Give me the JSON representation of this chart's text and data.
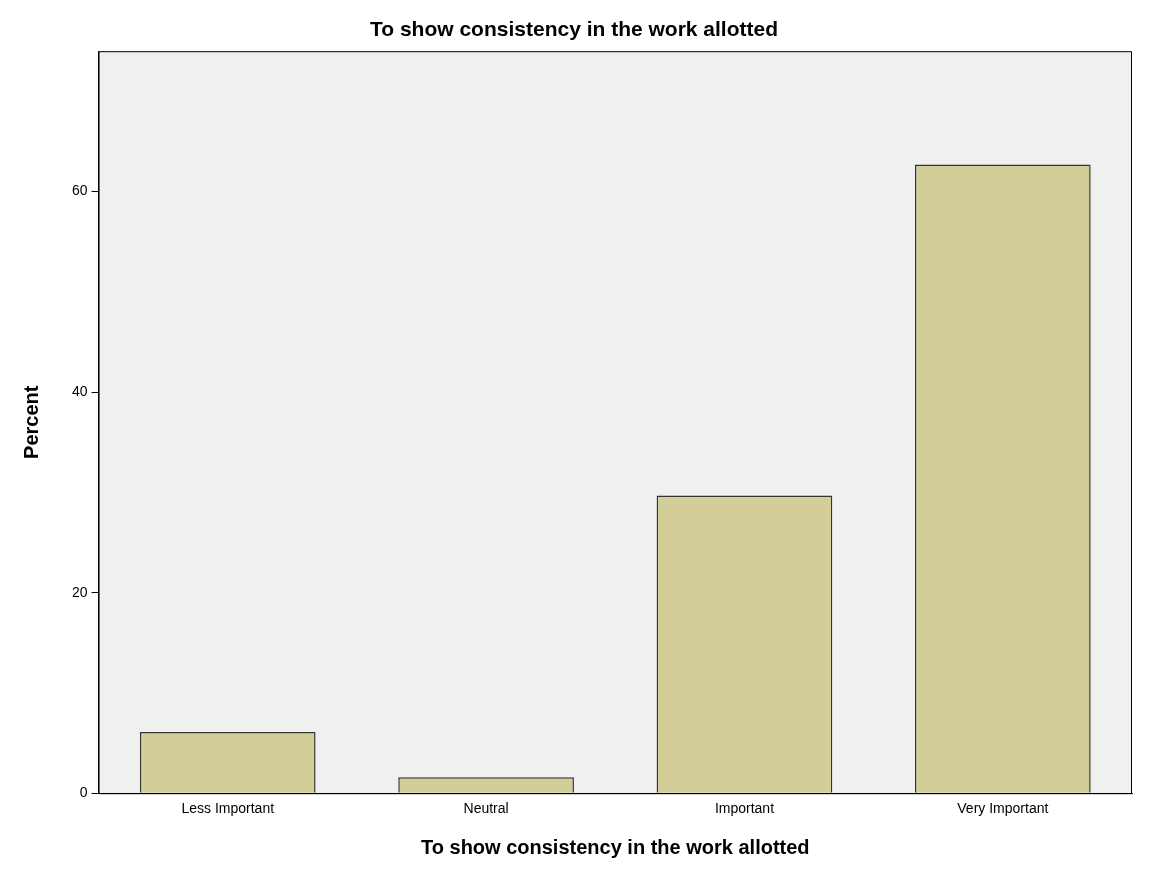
{
  "chart_data": {
    "type": "bar",
    "title": "To show consistency in the work allotted",
    "xlabel": "To show consistency in the work allotted",
    "ylabel": "Percent",
    "categories": [
      "Less Important",
      "Neutral",
      "Important",
      "Very Important"
    ],
    "values": [
      6.1,
      1.6,
      29.7,
      62.7
    ],
    "color": "#d3ce97",
    "ylim": [
      0,
      74
    ],
    "yticks": [
      0,
      20,
      40,
      60
    ],
    "grid": false,
    "legend": false
  }
}
